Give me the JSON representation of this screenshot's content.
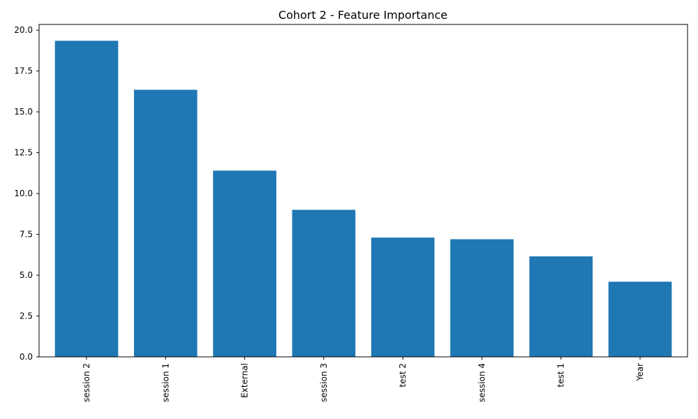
{
  "chart_data": {
    "type": "bar",
    "title": "Cohort 2 - Feature Importance",
    "xlabel": "",
    "ylabel": "",
    "categories": [
      "session 2",
      "session 1",
      "External",
      "session 3",
      "test 2",
      "session 4",
      "test 1",
      "Year"
    ],
    "values": [
      19.35,
      16.35,
      11.4,
      9.0,
      7.3,
      7.2,
      6.15,
      4.6
    ],
    "ylim": [
      0,
      20.35
    ],
    "yticks": [
      0.0,
      2.5,
      5.0,
      7.5,
      10.0,
      12.5,
      15.0,
      17.5,
      20.0
    ],
    "ytick_labels": [
      "0.0",
      "2.5",
      "5.0",
      "7.5",
      "10.0",
      "12.5",
      "15.0",
      "17.5",
      "20.0"
    ],
    "bar_color": "#1f77b4",
    "grid": false,
    "legend": "none"
  }
}
